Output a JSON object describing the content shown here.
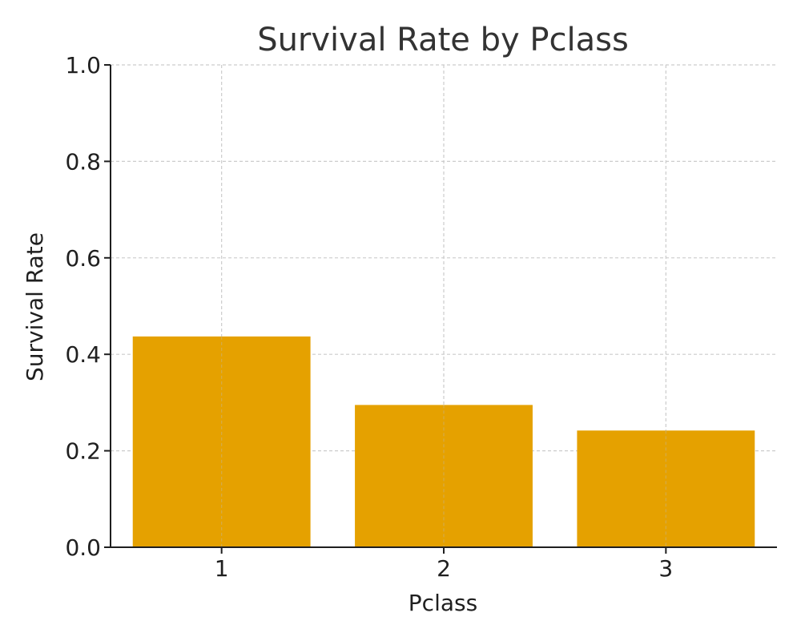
{
  "chart_data": {
    "type": "bar",
    "title": "Survival Rate by Pclass",
    "xlabel": "Pclass",
    "ylabel": "Survival Rate",
    "categories": [
      "1",
      "2",
      "3"
    ],
    "values": [
      0.437,
      0.295,
      0.242
    ],
    "ylim": [
      0.0,
      1.0
    ],
    "yticks": [
      "0.0",
      "0.2",
      "0.4",
      "0.6",
      "0.8",
      "1.0"
    ],
    "grid": true,
    "bar_color": "#E5A100",
    "grid_color": "#cccccc",
    "axis_color": "#1f1f1f"
  }
}
